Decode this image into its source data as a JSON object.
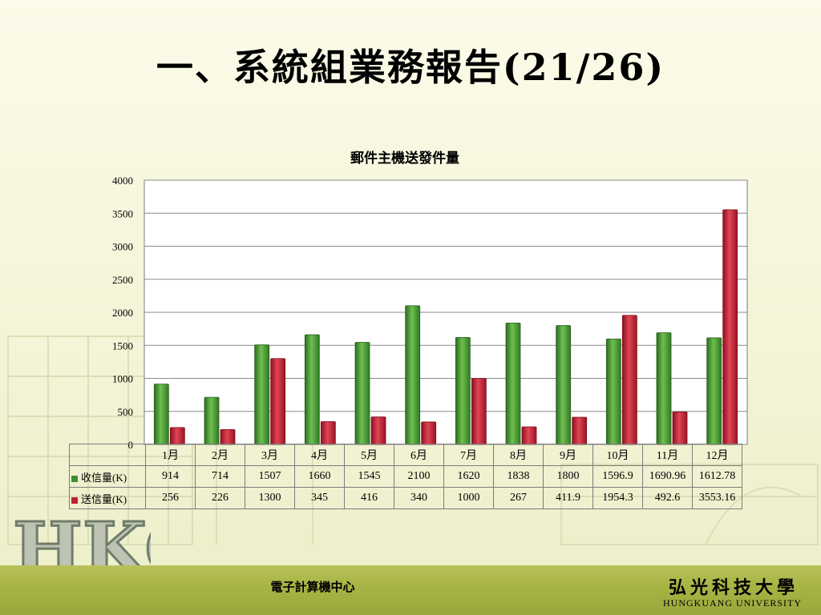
{
  "slide": {
    "title": "一、系統組業務報告(21/26)",
    "footer_center": "電子計算機中心",
    "university_cn": "弘光科技大學",
    "university_en": "HUNGKUANG UNIVERSITY",
    "logo_text": "HKC"
  },
  "colors": {
    "series1": "#3f8f2e",
    "series2": "#c0202f",
    "footer": "#a8b444"
  },
  "chart_data": {
    "type": "bar",
    "title": "郵件主機送發件量",
    "categories": [
      "1月",
      "2月",
      "3月",
      "4月",
      "5月",
      "6月",
      "7月",
      "8月",
      "9月",
      "10月",
      "11月",
      "12月"
    ],
    "series": [
      {
        "name": "收信量(K)",
        "values": [
          914,
          714,
          1507,
          1660,
          1545,
          2100,
          1620,
          1838,
          1800,
          1596.9,
          1690.96,
          1612.78
        ]
      },
      {
        "name": "送信量(K)",
        "values": [
          256,
          226,
          1300,
          345,
          416,
          340,
          1000,
          267,
          411.9,
          1954.3,
          492.6,
          3553.16
        ]
      }
    ],
    "ylim": [
      0,
      4000
    ],
    "yticks": [
      "0",
      "500",
      "1000",
      "1500",
      "2000",
      "2500",
      "3000",
      "3500",
      "4000"
    ],
    "grid": true,
    "legend": "data-table",
    "table_values": [
      [
        "914",
        "714",
        "1507",
        "1660",
        "1545",
        "2100",
        "1620",
        "1838",
        "1800",
        "1596.9",
        "1690.96",
        "1612.78"
      ],
      [
        "256",
        "226",
        "1300",
        "345",
        "416",
        "340",
        "1000",
        "267",
        "411.9",
        "1954.3",
        "492.6",
        "3553.16"
      ]
    ]
  }
}
